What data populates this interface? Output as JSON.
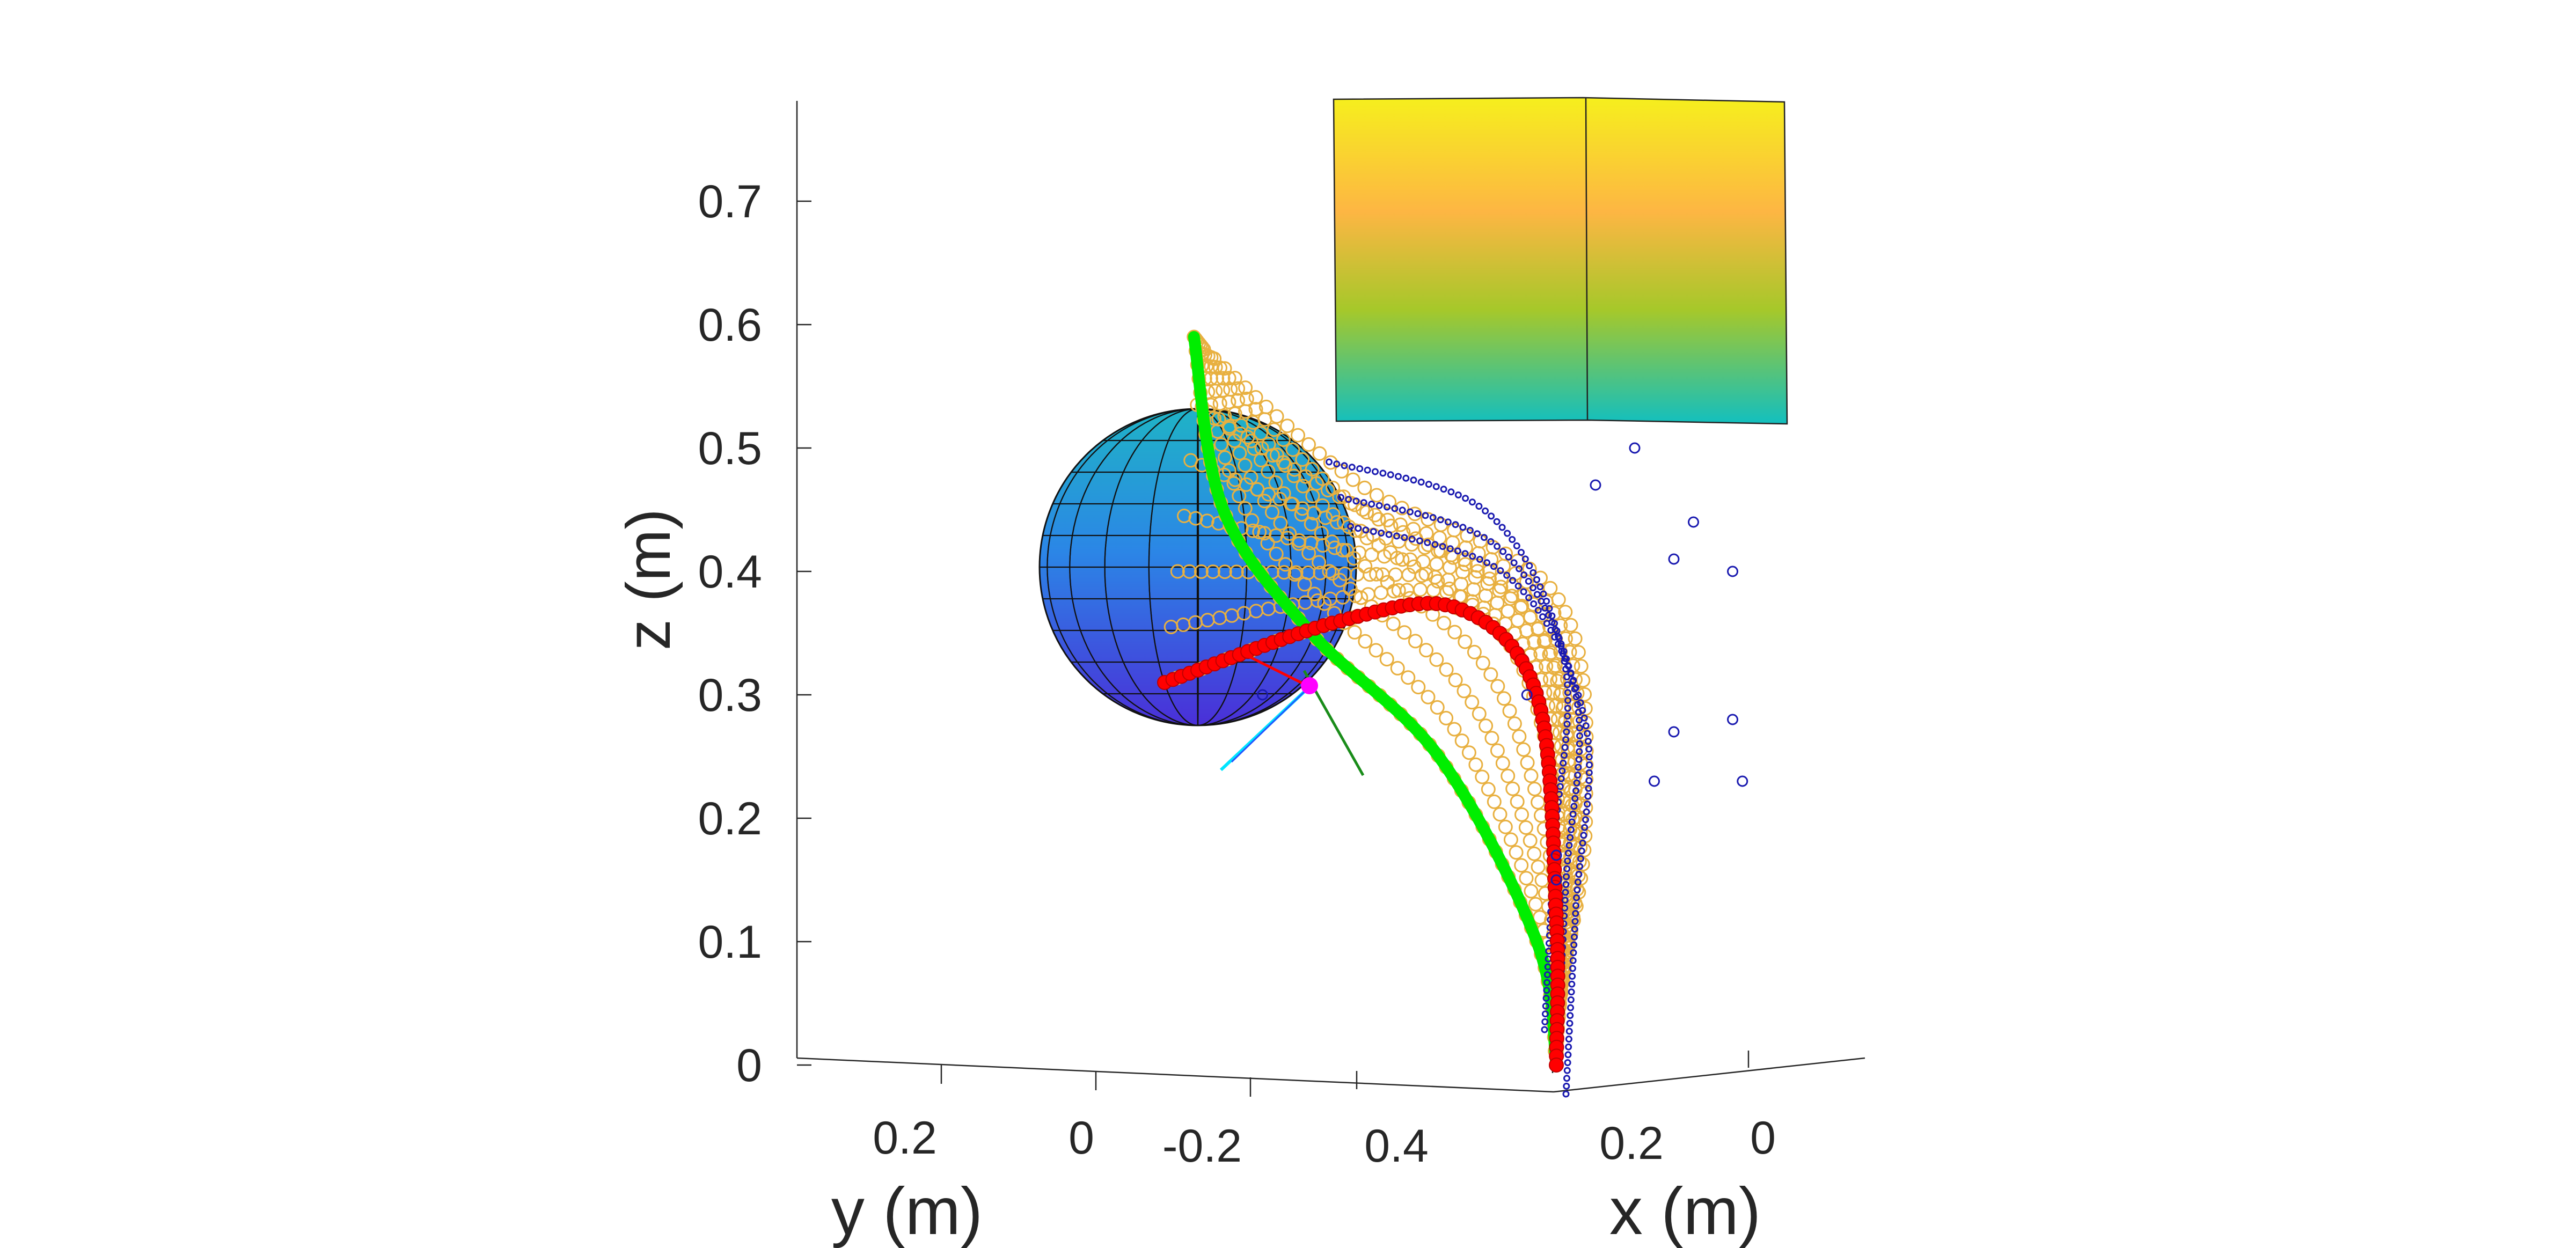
{
  "chart_data": {
    "type": "scatter",
    "title": "",
    "view": "3d",
    "xlabel": "x (m)",
    "ylabel": "y (m)",
    "zlabel": "z (m)",
    "z_ticks": [
      "0",
      "0.1",
      "0.2",
      "0.3",
      "0.4",
      "0.5",
      "0.6",
      "0.7"
    ],
    "y_ticks": [
      "0.2",
      "0",
      "-0.2"
    ],
    "x_ticks": [
      "0.4",
      "0.2",
      "0"
    ],
    "zlim": [
      0,
      0.78
    ],
    "grid": false,
    "legend": "none",
    "colors": {
      "axis": "#262626",
      "green_curve": "#00ee00",
      "red_curve": "#ff0000",
      "blue_markers": "#1a1ab0",
      "orange_markers": "#e8b040",
      "sphere_top": "#21a6c4",
      "sphere_bottom": "#4a2fd8",
      "box_top": "#f5ef1c",
      "box_mid": "#fdb643",
      "box_bottom": "#15bfbf"
    },
    "objects": [
      {
        "name": "sphere obstacle",
        "center_z": 0.4,
        "radius_z": 0.13
      },
      {
        "name": "box obstacle",
        "z_range": [
          0.52,
          0.79
        ]
      }
    ],
    "series": [
      {
        "style": "green line",
        "points_zx": [
          [
            0.59,
            0.57
          ],
          [
            0.45,
            0.54
          ],
          [
            0.35,
            0.45
          ],
          [
            0.25,
            0.32
          ],
          [
            0.1,
            0.22
          ],
          [
            0.0,
            0.2
          ]
        ]
      },
      {
        "style": "red circles",
        "points_zx": [
          [
            0.31,
            0.6
          ],
          [
            0.36,
            0.42
          ],
          [
            0.37,
            0.3
          ],
          [
            0.3,
            0.22
          ],
          [
            0.12,
            0.2
          ],
          [
            0.0,
            0.2
          ]
        ]
      },
      {
        "style": "blue circles",
        "points_zx": [
          [
            0.46,
            0.42
          ],
          [
            0.42,
            0.26
          ],
          [
            0.3,
            0.18
          ],
          [
            0.15,
            0.19
          ],
          [
            0.0,
            0.2
          ]
        ]
      },
      {
        "style": "orange circles",
        "points_zx": [
          [
            0.58,
            0.56
          ],
          [
            0.47,
            0.4
          ],
          [
            0.38,
            0.2
          ],
          [
            0.2,
            0.17
          ],
          [
            0.05,
            0.2
          ]
        ]
      }
    ],
    "scatter_markers_zx": [
      [
        0.5,
        0.12
      ],
      [
        0.47,
        0.16
      ],
      [
        0.44,
        0.06
      ],
      [
        0.41,
        0.08
      ],
      [
        0.4,
        0.02
      ],
      [
        0.28,
        0.02
      ],
      [
        0.27,
        0.08
      ],
      [
        0.23,
        0.01
      ],
      [
        0.23,
        0.1
      ],
      [
        0.17,
        0.2
      ],
      [
        0.15,
        0.2
      ],
      [
        0.3,
        0.23
      ],
      [
        0.3,
        0.5
      ]
    ]
  }
}
